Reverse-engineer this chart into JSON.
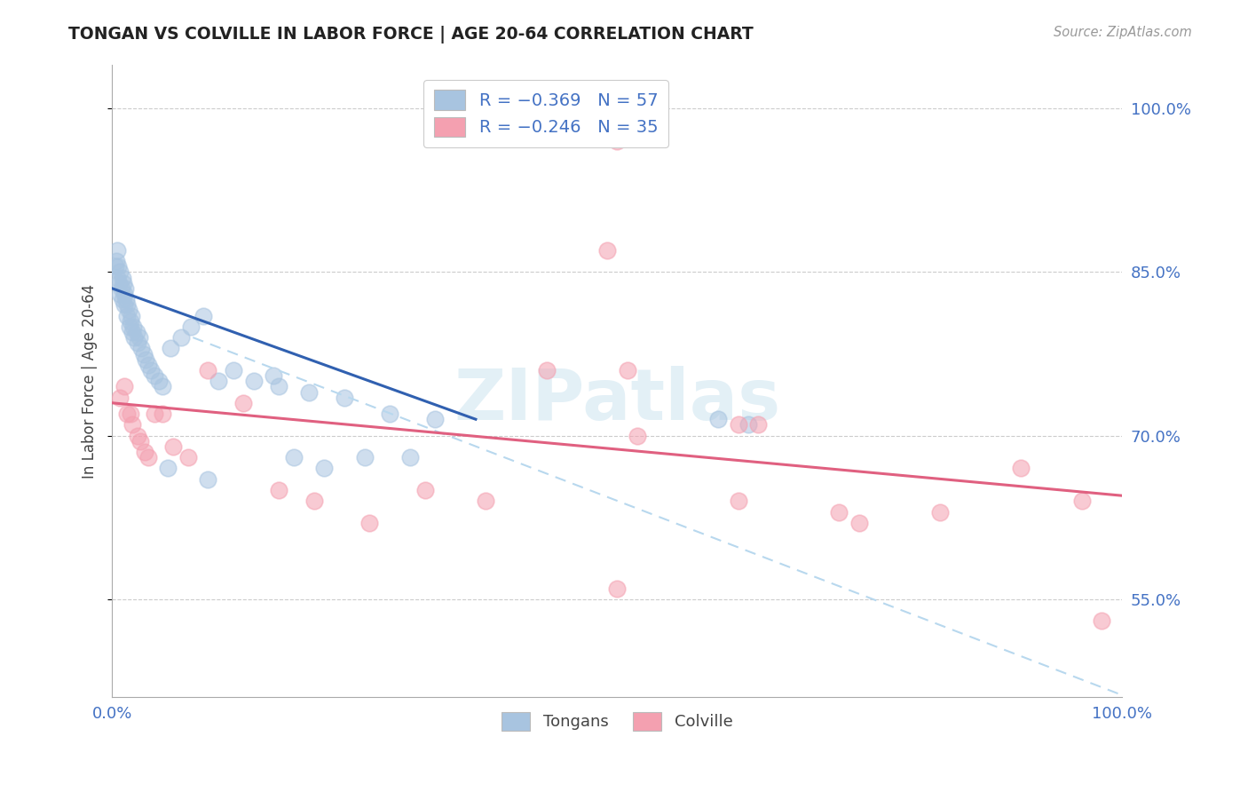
{
  "title": "TONGAN VS COLVILLE IN LABOR FORCE | AGE 20-64 CORRELATION CHART",
  "source": "Source: ZipAtlas.com",
  "ylabel": "In Labor Force | Age 20-64",
  "xlim": [
    0.0,
    1.0
  ],
  "ylim": [
    0.46,
    1.04
  ],
  "x_ticks": [
    0.0,
    0.2,
    0.4,
    0.6,
    0.8,
    1.0
  ],
  "x_tick_labels": [
    "0.0%",
    "",
    "",
    "",
    "",
    "100.0%"
  ],
  "y_ticks": [
    0.55,
    0.7,
    0.85,
    1.0
  ],
  "y_tick_labels": [
    "55.0%",
    "70.0%",
    "85.0%",
    "100.0%"
  ],
  "tongan_color": "#a8c4e0",
  "colville_color": "#f4a0b0",
  "tongan_line_color": "#3060b0",
  "colville_line_color": "#e06080",
  "dashed_line_color": "#b8d8ee",
  "watermark": "ZIPatlas",
  "background_color": "#ffffff",
  "grid_color": "#cccccc",
  "blue_line_x": [
    0.0,
    0.36
  ],
  "blue_line_y": [
    0.835,
    0.715
  ],
  "pink_line_x": [
    0.0,
    1.0
  ],
  "pink_line_y": [
    0.73,
    0.645
  ],
  "dash_line_x": [
    0.08,
    1.02
  ],
  "dash_line_y": [
    0.79,
    0.455
  ],
  "tongan_scatter_x": [
    0.003,
    0.004,
    0.005,
    0.005,
    0.006,
    0.007,
    0.008,
    0.008,
    0.009,
    0.01,
    0.01,
    0.011,
    0.012,
    0.012,
    0.013,
    0.014,
    0.015,
    0.015,
    0.016,
    0.017,
    0.018,
    0.019,
    0.02,
    0.021,
    0.022,
    0.024,
    0.025,
    0.027,
    0.029,
    0.031,
    0.033,
    0.036,
    0.038,
    0.042,
    0.046,
    0.05,
    0.058,
    0.068,
    0.078,
    0.09,
    0.105,
    0.12,
    0.14,
    0.165,
    0.195,
    0.23,
    0.275,
    0.32,
    0.18,
    0.21,
    0.25,
    0.295,
    0.6,
    0.63,
    0.16,
    0.095,
    0.055
  ],
  "tongan_scatter_y": [
    0.855,
    0.86,
    0.87,
    0.845,
    0.855,
    0.84,
    0.83,
    0.85,
    0.835,
    0.845,
    0.825,
    0.84,
    0.83,
    0.82,
    0.835,
    0.825,
    0.82,
    0.81,
    0.815,
    0.8,
    0.805,
    0.81,
    0.795,
    0.8,
    0.79,
    0.795,
    0.785,
    0.79,
    0.78,
    0.775,
    0.77,
    0.765,
    0.76,
    0.755,
    0.75,
    0.745,
    0.78,
    0.79,
    0.8,
    0.81,
    0.75,
    0.76,
    0.75,
    0.745,
    0.74,
    0.735,
    0.72,
    0.715,
    0.68,
    0.67,
    0.68,
    0.68,
    0.715,
    0.71,
    0.755,
    0.66,
    0.67
  ],
  "colville_scatter_x": [
    0.008,
    0.012,
    0.015,
    0.018,
    0.02,
    0.025,
    0.028,
    0.032,
    0.036,
    0.042,
    0.05,
    0.06,
    0.075,
    0.095,
    0.13,
    0.165,
    0.2,
    0.255,
    0.31,
    0.37,
    0.43,
    0.5,
    0.51,
    0.52,
    0.62,
    0.64,
    0.72,
    0.74,
    0.82,
    0.9,
    0.96,
    0.98,
    0.49,
    0.62,
    0.5
  ],
  "colville_scatter_y": [
    0.735,
    0.745,
    0.72,
    0.72,
    0.71,
    0.7,
    0.695,
    0.685,
    0.68,
    0.72,
    0.72,
    0.69,
    0.68,
    0.76,
    0.73,
    0.65,
    0.64,
    0.62,
    0.65,
    0.64,
    0.76,
    0.56,
    0.76,
    0.7,
    0.71,
    0.71,
    0.63,
    0.62,
    0.63,
    0.67,
    0.64,
    0.53,
    0.87,
    0.64,
    0.97
  ]
}
